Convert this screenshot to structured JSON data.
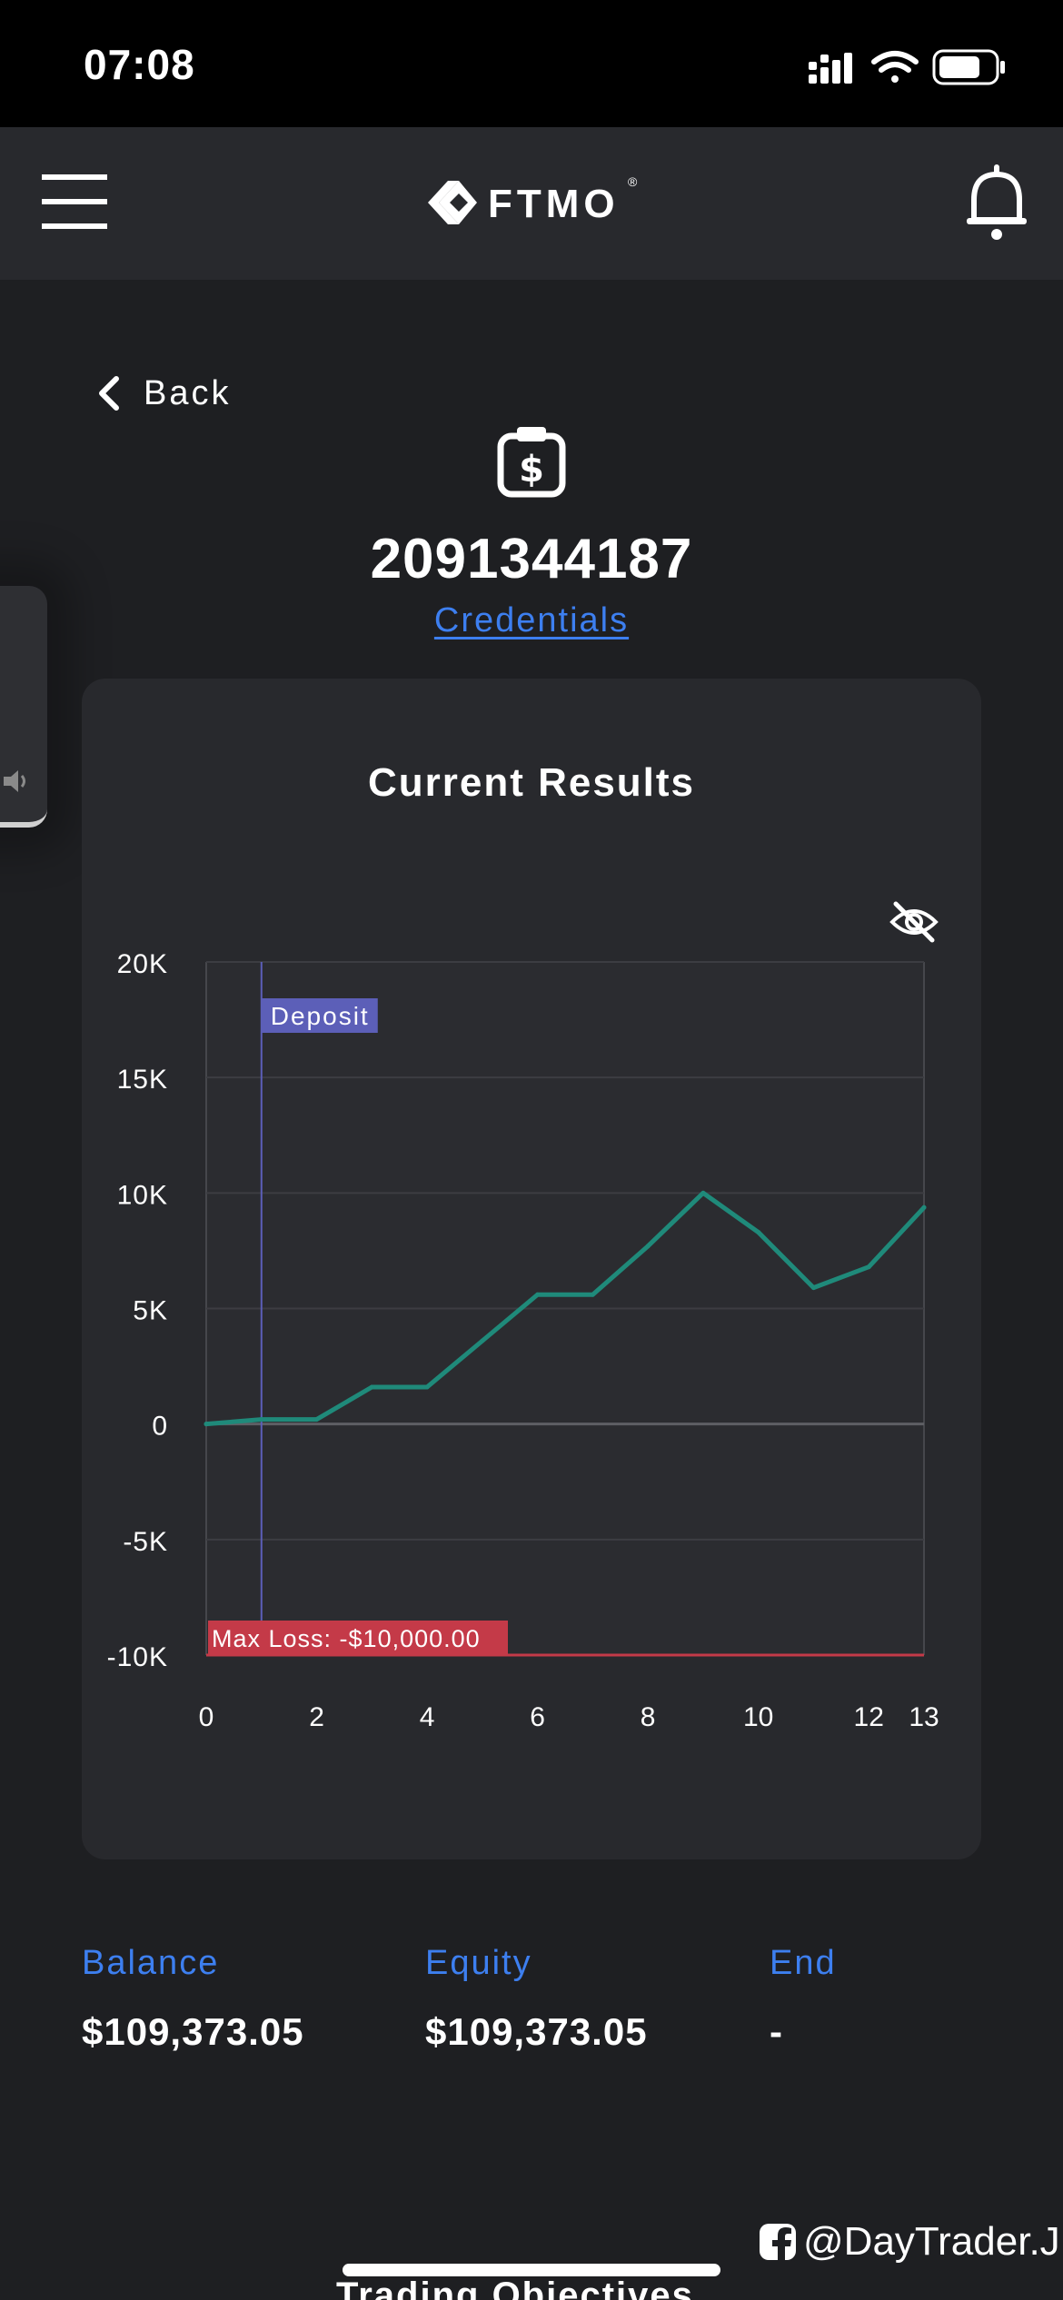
{
  "status_bar": {
    "time": "07:08"
  },
  "header": {
    "logo_text": "FTMO",
    "logo_mark": "®"
  },
  "nav": {
    "back_label": "Back"
  },
  "account": {
    "number": "2091344187",
    "credentials_label": "Credentials"
  },
  "results": {
    "title": "Current Results",
    "deposit_label": "Deposit",
    "max_loss_label": "Max Loss: -$10,000.00"
  },
  "chart_data": {
    "type": "line",
    "title": "Current Results",
    "xlabel": "",
    "ylabel": "",
    "xlim": [
      0,
      13
    ],
    "ylim": [
      -10000,
      20000
    ],
    "x_ticks": [
      0,
      2,
      4,
      6,
      8,
      10,
      12,
      13
    ],
    "y_ticks": [
      20000,
      15000,
      10000,
      5000,
      0,
      -5000,
      -10000
    ],
    "y_tick_labels": [
      "20K",
      "15K",
      "10K",
      "5K",
      "0",
      "-5K",
      "-10K"
    ],
    "grid": true,
    "legend": "none",
    "series": [
      {
        "x": [
          0,
          1,
          2,
          3,
          4,
          5,
          6,
          7,
          8,
          9,
          10,
          11,
          12,
          13
        ],
        "values": [
          0,
          200,
          200,
          1600,
          1600,
          3600,
          5600,
          5600,
          7700,
          10000,
          8300,
          5900,
          6800,
          9373.05
        ],
        "color": "#1f8a7a"
      }
    ],
    "annotations": [
      {
        "type": "vertical-line",
        "x": 1,
        "label": "Deposit",
        "color": "#5c5fb8"
      },
      {
        "type": "horizontal-line",
        "y": -10000,
        "label": "Max Loss: -$10,000.00",
        "color": "#c43a48"
      }
    ]
  },
  "stats": [
    {
      "label": "Balance",
      "value": "$109,373.05"
    },
    {
      "label": "Equity",
      "value": "$109,373.05"
    },
    {
      "label": "End",
      "value": "-"
    }
  ],
  "watermark": {
    "text": "@DayTrader.J"
  },
  "next_section": {
    "title": "Trading Objectives"
  },
  "colors": {
    "background": "#1e1f22",
    "card": "#28292d",
    "accent_blue": "#3d7ff0",
    "line_green": "#1f8a7a",
    "deposit": "#5c5fb8",
    "max_loss": "#c43a48"
  }
}
